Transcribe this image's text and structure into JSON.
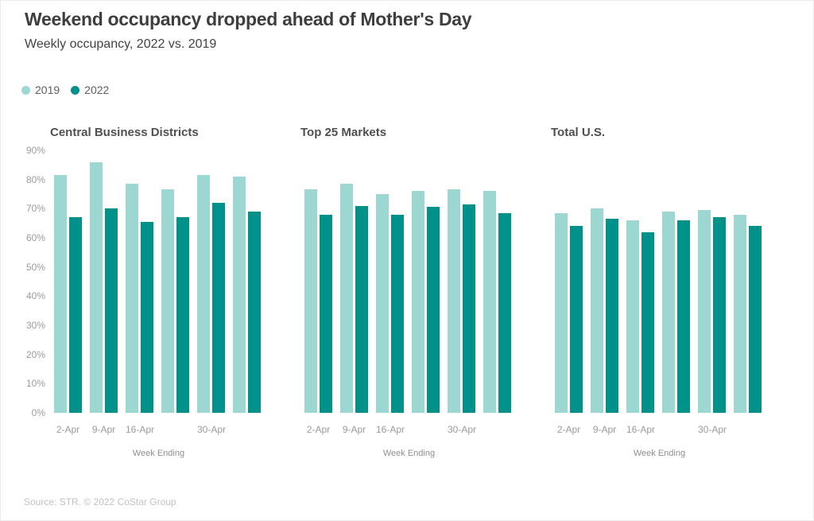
{
  "title": "Weekend occupancy dropped ahead of Mother's Day",
  "subtitle": "Weekly occupancy, 2022 vs. 2019",
  "legend": [
    {
      "label": "2019",
      "color": "#9cd7d2"
    },
    {
      "label": "2022",
      "color": "#00918a"
    }
  ],
  "colors": {
    "series_2019": "#9cd7d2",
    "series_2022": "#00918a",
    "title_text": "#3e3e3e",
    "axis_text": "#9b9b9b"
  },
  "footer": "Source: STR. © 2022 CoStar Group",
  "chart_data": [
    {
      "type": "bar",
      "title": "Central Business Districts",
      "categories": [
        "2-Apr",
        "9-Apr",
        "16-Apr",
        "",
        "30-Apr",
        ""
      ],
      "series": [
        {
          "name": "2019",
          "values": [
            81.5,
            86,
            78.5,
            76.5,
            81.5,
            81
          ]
        },
        {
          "name": "2022",
          "values": [
            67,
            70,
            65.5,
            67,
            72,
            69
          ]
        }
      ],
      "ylim": [
        0,
        90
      ],
      "yticks": [
        "90%",
        "80%",
        "70%",
        "60%",
        "50%",
        "40%",
        "30%",
        "20%",
        "10%",
        "0%"
      ],
      "show_y_axis": true,
      "grid": false,
      "xlabel": "Week Ending",
      "ylabel": ""
    },
    {
      "type": "bar",
      "title": "Top 25 Markets",
      "categories": [
        "2-Apr",
        "9-Apr",
        "16-Apr",
        "",
        "30-Apr",
        ""
      ],
      "series": [
        {
          "name": "2019",
          "values": [
            76.5,
            78.5,
            75,
            76,
            76.5,
            76
          ]
        },
        {
          "name": "2022",
          "values": [
            68,
            71,
            68,
            70.5,
            71.5,
            68.5
          ]
        }
      ],
      "ylim": [
        0,
        90
      ],
      "show_y_axis": false,
      "grid": false,
      "xlabel": "Week Ending",
      "ylabel": ""
    },
    {
      "type": "bar",
      "title": "Total U.S.",
      "categories": [
        "2-Apr",
        "9-Apr",
        "16-Apr",
        "",
        "30-Apr",
        ""
      ],
      "series": [
        {
          "name": "2019",
          "values": [
            68.5,
            70,
            66,
            69,
            69.5,
            68
          ]
        },
        {
          "name": "2022",
          "values": [
            64,
            66.5,
            62,
            66,
            67,
            64
          ]
        }
      ],
      "ylim": [
        0,
        90
      ],
      "show_y_axis": false,
      "grid": false,
      "xlabel": "Week Ending",
      "ylabel": ""
    }
  ]
}
